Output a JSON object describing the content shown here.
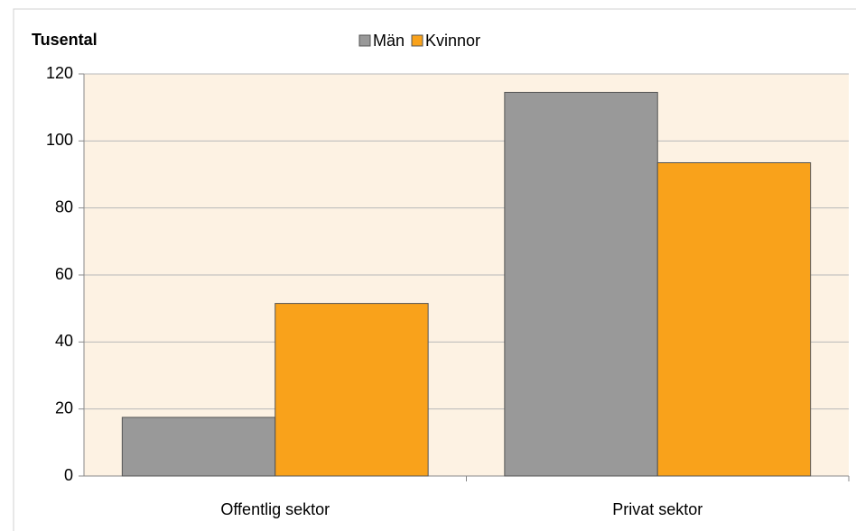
{
  "chart_data": {
    "type": "bar",
    "y_label": "Tusental",
    "categories": [
      "Offentlig sektor",
      "Privat sektor"
    ],
    "series": [
      {
        "name": "Män",
        "color": "#999999",
        "values": [
          17.5,
          114.5
        ]
      },
      {
        "name": "Kvinnor",
        "color": "#f9a21b",
        "values": [
          51.5,
          93.5
        ]
      }
    ],
    "ylim": [
      0,
      120
    ],
    "yticks": [
      0,
      20,
      40,
      60,
      80,
      100,
      120
    ],
    "grid": true,
    "legend": "top"
  }
}
